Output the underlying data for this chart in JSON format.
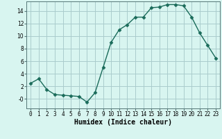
{
  "x": [
    0,
    1,
    2,
    3,
    4,
    5,
    6,
    7,
    8,
    9,
    10,
    11,
    12,
    13,
    14,
    15,
    16,
    17,
    18,
    19,
    20,
    21,
    22,
    23
  ],
  "y": [
    2.5,
    3.2,
    1.5,
    0.7,
    0.6,
    0.5,
    0.4,
    -0.5,
    1.0,
    5.0,
    9.0,
    11.0,
    11.8,
    13.0,
    13.0,
    14.5,
    14.6,
    15.0,
    15.0,
    14.8,
    13.0,
    10.5,
    8.5,
    6.5
  ],
  "line_color": "#1a6b5a",
  "marker": "D",
  "markersize": 2.5,
  "linewidth": 1.0,
  "bg_color": "#d8f5f0",
  "grid_color": "#aacccc",
  "xlabel": "Humidex (Indice chaleur)",
  "xlabel_fontsize": 7,
  "xlabel_fontweight": "bold",
  "ylim": [
    -1.5,
    15.5
  ],
  "xlim": [
    -0.5,
    23.5
  ],
  "yticks": [
    0,
    2,
    4,
    6,
    8,
    10,
    12,
    14
  ],
  "ytick_labels": [
    "-0",
    "2",
    "4",
    "6",
    "8",
    "10",
    "12",
    "14"
  ],
  "xtick_labels": [
    "0",
    "1",
    "2",
    "3",
    "4",
    "5",
    "6",
    "7",
    "8",
    "9",
    "10",
    "11",
    "12",
    "13",
    "14",
    "15",
    "16",
    "17",
    "18",
    "19",
    "20",
    "21",
    "22",
    "23"
  ],
  "tick_fontsize": 5.5,
  "fig_width": 3.2,
  "fig_height": 2.0,
  "dpi": 100
}
